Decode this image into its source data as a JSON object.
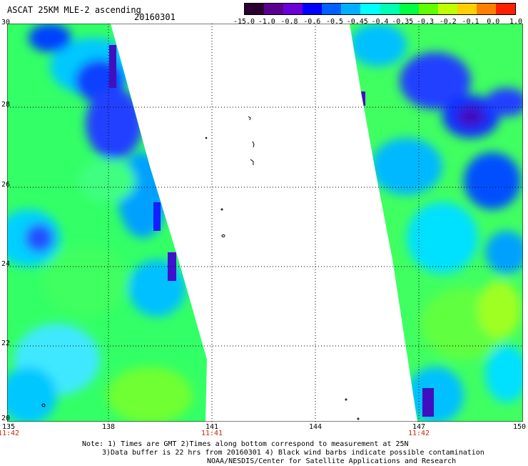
{
  "title": "ASCAT 25KM MLE-2 ascending",
  "date": "20160301",
  "colorbar": {
    "labels": [
      "-15.0",
      "-1.0",
      "-0.8",
      "-0.6",
      "-0.5",
      "-0.45",
      "-0.4",
      "-0.35",
      "-0.3",
      "-0.2",
      "-0.1",
      "0.0",
      "1.0"
    ],
    "colors": [
      "#2a0030",
      "#5a0090",
      "#6a00d8",
      "#0000ff",
      "#0060ff",
      "#00b0ff",
      "#00ffff",
      "#00ffb0",
      "#00ff40",
      "#60ff00",
      "#c0ff00",
      "#ffd000",
      "#ff8000",
      "#ff2000"
    ]
  },
  "lat_labels": [
    "30",
    "28",
    "26",
    "24",
    "22",
    "20"
  ],
  "lon_labels": [
    "135",
    "138",
    "141",
    "144",
    "147",
    "150"
  ],
  "time_labels": [
    {
      "lon": "135",
      "time": "11:42"
    },
    {
      "lon": "138",
      "time": ""
    },
    {
      "lon": "141",
      "time": "11:41"
    },
    {
      "lon": "144",
      "time": ""
    },
    {
      "lon": "147",
      "time": "11:42"
    },
    {
      "lon": "150",
      "time": ""
    }
  ],
  "notes": {
    "line1": "Note: 1) Times are GMT 2)Times along bottom correspond to measurement at 25N",
    "line2": "3)Data buffer is 22 hrs from 20160301 4) Black wind barbs indicate possible contamination",
    "line3": "NOAA/NESDIS/Center for Satellite Applications and Research"
  }
}
